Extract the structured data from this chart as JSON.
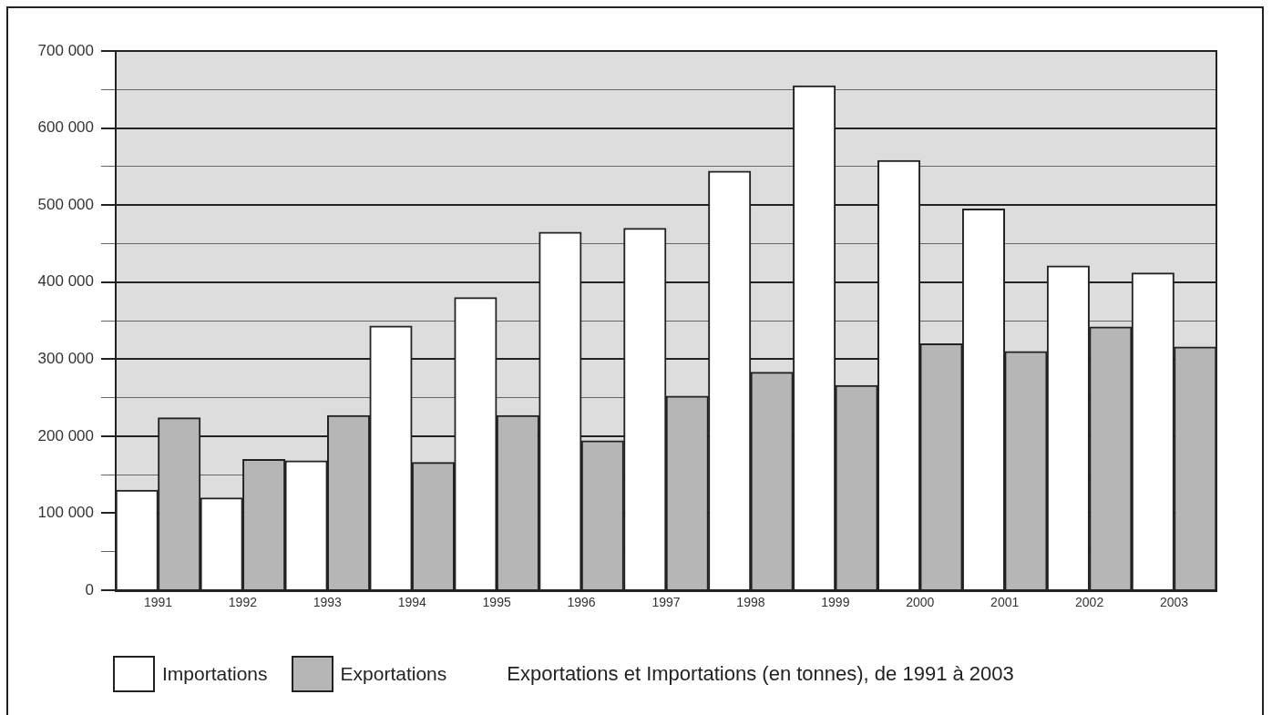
{
  "chart_data": {
    "type": "bar",
    "title": "Exportations et Importations (en tonnes), de 1991 à 2003",
    "categories": [
      "1991",
      "1992",
      "1993",
      "1994",
      "1995",
      "1996",
      "1997",
      "1998",
      "1999",
      "2000",
      "2001",
      "2002",
      "2003"
    ],
    "series": [
      {
        "name": "Importations",
        "color": "#ffffff",
        "values": [
          130000,
          120000,
          168000,
          343000,
          380000,
          465000,
          470000,
          544000,
          655000,
          558000,
          495000,
          421000,
          412000
        ]
      },
      {
        "name": "Exportations",
        "color": "#b5b6b5",
        "values": [
          224000,
          170000,
          227000,
          166000,
          227000,
          194000,
          252000,
          283000,
          266000,
          320000,
          310000,
          342000,
          316000
        ]
      }
    ],
    "ylim": [
      0,
      700000
    ],
    "yticks": [
      {
        "value": 0,
        "label": "0"
      },
      {
        "value": 50000,
        "label": null
      },
      {
        "value": 100000,
        "label": "100 000"
      },
      {
        "value": 150000,
        "label": null
      },
      {
        "value": 200000,
        "label": "200 000"
      },
      {
        "value": 250000,
        "label": null
      },
      {
        "value": 300000,
        "label": "300 000"
      },
      {
        "value": 350000,
        "label": null
      },
      {
        "value": 400000,
        "label": "400 000"
      },
      {
        "value": 450000,
        "label": null
      },
      {
        "value": 500000,
        "label": "500 000"
      },
      {
        "value": 550000,
        "label": null
      },
      {
        "value": 600000,
        "label": "600 000"
      },
      {
        "value": 650000,
        "label": null
      },
      {
        "value": 700000,
        "label": "700 000"
      }
    ],
    "grid": "y",
    "legend": "bottom"
  }
}
